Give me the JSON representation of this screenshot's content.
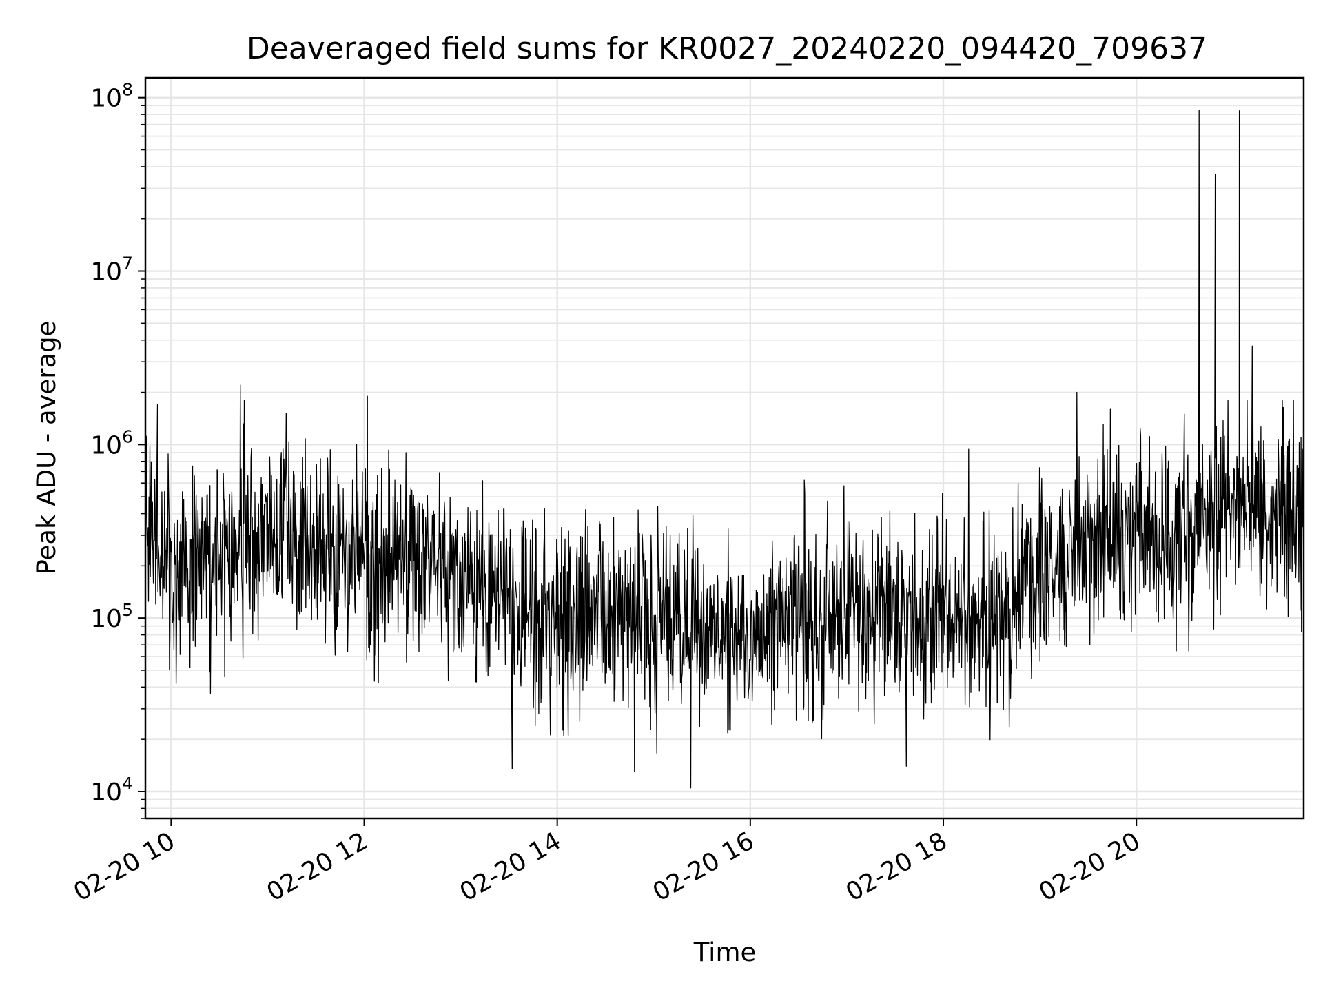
{
  "chart_data": {
    "type": "line",
    "title": "Deaveraged field sums for KR0027_20240220_094420_709637",
    "xlabel": "Time",
    "ylabel": "Peak ADU - average",
    "yscale": "log",
    "ylim": [
      7000,
      130000000
    ],
    "y_ticks": [
      {
        "value": 10000,
        "base": "10",
        "exp": "4"
      },
      {
        "value": 100000,
        "base": "10",
        "exp": "5"
      },
      {
        "value": 1000000,
        "base": "10",
        "exp": "6"
      },
      {
        "value": 10000000,
        "base": "10",
        "exp": "7"
      },
      {
        "value": 100000000,
        "base": "10",
        "exp": "8"
      }
    ],
    "xlim": [
      "2024-02-20T09:44",
      "2024-02-20T21:44"
    ],
    "x_ticks": [
      {
        "value": "2024-02-20T10:00",
        "label": "02-20 10"
      },
      {
        "value": "2024-02-20T12:00",
        "label": "02-20 12"
      },
      {
        "value": "2024-02-20T14:00",
        "label": "02-20 14"
      },
      {
        "value": "2024-02-20T16:00",
        "label": "02-20 16"
      },
      {
        "value": "2024-02-20T18:00",
        "label": "02-20 18"
      },
      {
        "value": "2024-02-20T20:00",
        "label": "02-20 20"
      }
    ],
    "grid": true,
    "line_color": "#000000",
    "grid_color": "#e6e6e6",
    "series": [
      {
        "trend": {
          "x": [
            "2024-02-20T09:44",
            "2024-02-20T10:00",
            "2024-02-20T10:30",
            "2024-02-20T11:00",
            "2024-02-20T11:30",
            "2024-02-20T12:00",
            "2024-02-20T12:30",
            "2024-02-20T13:00",
            "2024-02-20T13:30",
            "2024-02-20T14:00",
            "2024-02-20T14:30",
            "2024-02-20T15:00",
            "2024-02-20T15:30",
            "2024-02-20T16:00",
            "2024-02-20T16:30",
            "2024-02-20T17:00",
            "2024-02-20T17:30",
            "2024-02-20T18:00",
            "2024-02-20T18:30",
            "2024-02-20T19:00",
            "2024-02-20T19:30",
            "2024-02-20T20:00",
            "2024-02-20T20:30",
            "2024-02-20T21:00",
            "2024-02-20T21:30",
            "2024-02-20T21:44"
          ],
          "y": [
            300000,
            220000,
            240000,
            300000,
            260000,
            210000,
            200000,
            170000,
            120000,
            90000,
            110000,
            95000,
            90000,
            80000,
            90000,
            105000,
            100000,
            95000,
            105000,
            160000,
            300000,
            330000,
            320000,
            480000,
            420000,
            380000
          ]
        },
        "spikes": [
          {
            "x": "2024-02-20T20:39",
            "y": 85000000
          },
          {
            "x": "2024-02-20T20:49",
            "y": 36000000
          },
          {
            "x": "2024-02-20T21:04",
            "y": 84000000
          },
          {
            "x": "2024-02-20T21:12",
            "y": 3700000
          },
          {
            "x": "2024-02-20T10:43",
            "y": 2200000
          },
          {
            "x": "2024-02-20T12:02",
            "y": 1900000
          },
          {
            "x": "2024-02-20T19:23",
            "y": 2000000
          }
        ],
        "dips": [
          {
            "x": "2024-02-20T15:23",
            "y": 10500
          },
          {
            "x": "2024-02-20T14:48",
            "y": 13000
          },
          {
            "x": "2024-02-20T13:32",
            "y": 13500
          },
          {
            "x": "2024-02-20T17:37",
            "y": 14000
          }
        ]
      }
    ]
  }
}
